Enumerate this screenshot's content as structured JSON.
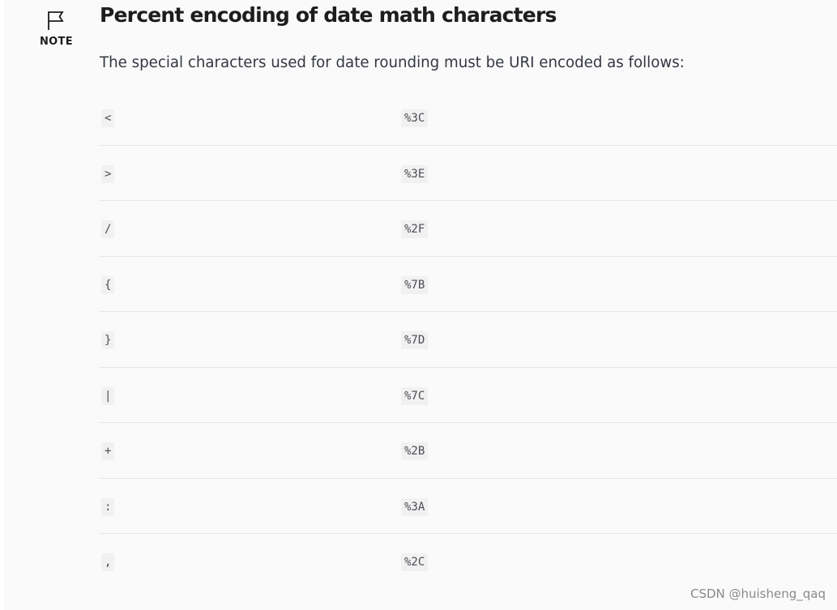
{
  "note": {
    "icon": "flag-icon",
    "label": "NOTE",
    "title": "Percent encoding of date math characters",
    "intro": "The special characters used for date rounding must be URI encoded as follows:"
  },
  "encodings": [
    {
      "char": "<",
      "encoded": "%3C"
    },
    {
      "char": ">",
      "encoded": "%3E"
    },
    {
      "char": "/",
      "encoded": "%2F"
    },
    {
      "char": "{",
      "encoded": "%7B"
    },
    {
      "char": "}",
      "encoded": "%7D"
    },
    {
      "char": "|",
      "encoded": "%7C"
    },
    {
      "char": "+",
      "encoded": "%2B"
    },
    {
      "char": ":",
      "encoded": "%3A"
    },
    {
      "char": ",",
      "encoded": "%2C"
    }
  ],
  "watermark": "CSDN @huisheng_qaq"
}
